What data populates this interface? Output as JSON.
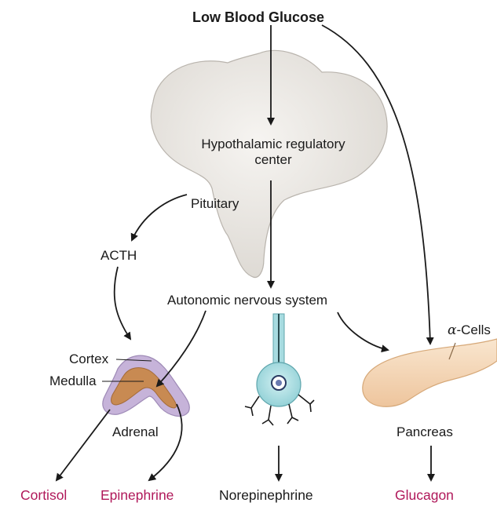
{
  "diagram": {
    "title": "Low Blood Glucose",
    "nodes": {
      "hypothalamus_line1": "Hypothalamic regulatory",
      "hypothalamus_line2": "center",
      "pituitary": "Pituitary",
      "acth": "ACTH",
      "ans": "Autonomic nervous system",
      "cortex": "Cortex",
      "medulla": "Medulla",
      "adrenal": "Adrenal",
      "alpha_symbol": "α",
      "alpha_cells": "-Cells",
      "pancreas": "Pancreas"
    },
    "outputs": {
      "cortisol": "Cortisol",
      "epinephrine": "Epinephrine",
      "norepinephrine": "Norepinephrine",
      "glucagon": "Glucagon"
    },
    "colors": {
      "hormone_magenta": "#b0185a",
      "brain_fill": "#ebe8e4",
      "adrenal_outer": "#c6b3d9",
      "adrenal_inner": "#c88a52",
      "neuron_fill": "#a7dbe0",
      "pancreas_fill": "#f4d7b6",
      "arrow": "#1a1a1a"
    }
  }
}
